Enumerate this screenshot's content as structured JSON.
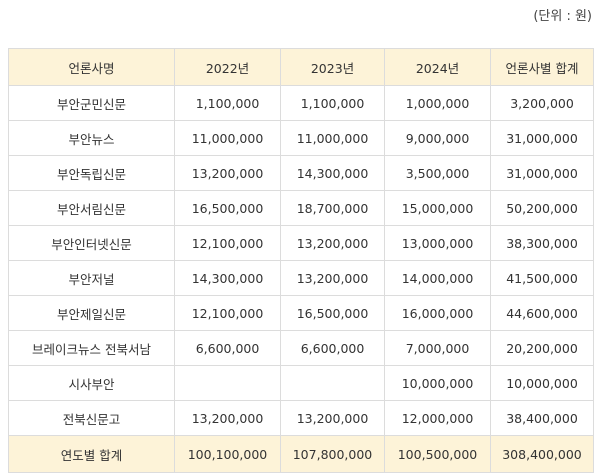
{
  "unit_note": "(단위 : 원)",
  "table": {
    "headers": [
      "언론사명",
      "2022년",
      "2023년",
      "2024년",
      "언론사별 합계"
    ],
    "rows": [
      {
        "name": "부안군민신문",
        "y2022": "1,100,000",
        "y2023": "1,100,000",
        "y2024": "1,000,000",
        "total": "3,200,000"
      },
      {
        "name": "부안뉴스",
        "y2022": "11,000,000",
        "y2023": "11,000,000",
        "y2024": "9,000,000",
        "total": "31,000,000"
      },
      {
        "name": "부안독립신문",
        "y2022": "13,200,000",
        "y2023": "14,300,000",
        "y2024": "3,500,000",
        "total": "31,000,000"
      },
      {
        "name": "부안서림신문",
        "y2022": "16,500,000",
        "y2023": "18,700,000",
        "y2024": "15,000,000",
        "total": "50,200,000"
      },
      {
        "name": "부안인터넷신문",
        "y2022": "12,100,000",
        "y2023": "13,200,000",
        "y2024": "13,000,000",
        "total": "38,300,000"
      },
      {
        "name": "부안저널",
        "y2022": "14,300,000",
        "y2023": "13,200,000",
        "y2024": "14,000,000",
        "total": "41,500,000"
      },
      {
        "name": "부안제일신문",
        "y2022": "12,100,000",
        "y2023": "16,500,000",
        "y2024": "16,000,000",
        "total": "44,600,000"
      },
      {
        "name": "브레이크뉴스 전북서남",
        "y2022": "6,600,000",
        "y2023": "6,600,000",
        "y2024": "7,000,000",
        "total": "20,200,000"
      },
      {
        "name": "시사부안",
        "y2022": "",
        "y2023": "",
        "y2024": "10,000,000",
        "total": "10,000,000"
      },
      {
        "name": "전북신문고",
        "y2022": "13,200,000",
        "y2023": "13,200,000",
        "y2024": "12,000,000",
        "total": "38,400,000"
      }
    ],
    "footer": {
      "name": "연도별 합계",
      "y2022": "100,100,000",
      "y2023": "107,800,000",
      "y2024": "100,500,000",
      "total": "308,400,000"
    }
  }
}
